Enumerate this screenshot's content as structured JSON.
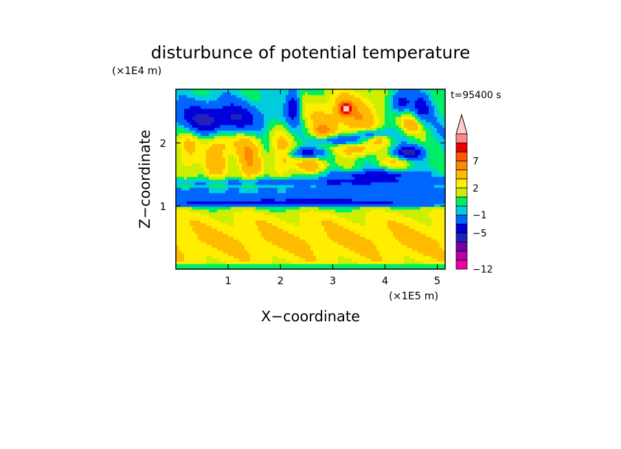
{
  "chart_data": {
    "type": "heatmap",
    "title": "disturbunce of potential temperature",
    "xlabel": "X−coordinate",
    "ylabel": "Z−coordinate",
    "x_unit": "(×1E5 m)",
    "y_unit": "(×1E4 m)",
    "time_label": "t=95400 s",
    "xlim": [
      0,
      5.15
    ],
    "ylim": [
      0,
      2.85
    ],
    "xticks": [
      1,
      2,
      3,
      4,
      5
    ],
    "yticks": [
      1,
      2
    ],
    "colorbar": {
      "levels": [
        -12,
        -11,
        -9,
        -7,
        -5,
        -3,
        -1,
        0,
        1,
        2,
        3,
        5,
        7,
        9,
        11
      ],
      "labeled_ticks": [
        7,
        2,
        -1,
        -5,
        -12
      ],
      "extend": "max",
      "colors": [
        "#ee00aa",
        "#bb00aa",
        "#7700aa",
        "#2222bb",
        "#0000dd",
        "#0066ff",
        "#00ccdd",
        "#00ee66",
        "#ccee00",
        "#ffee00",
        "#ffbb00",
        "#ff8800",
        "#ff5500",
        "#ee0000",
        "#ff8888",
        "#ffcccc"
      ]
    },
    "field_description": {
      "grid": "0-5.15 x 0-2.85 (x1E5 m, x1E4 m)",
      "features": [
        {
          "x": 0.9,
          "z": 2.4,
          "value": -5,
          "kind": "cold band"
        },
        {
          "x": 3.25,
          "z": 2.55,
          "value": 11,
          "kind": "warm core"
        },
        {
          "x": 3.0,
          "z": 0.5,
          "value": 3,
          "kind": "warm lower layer"
        },
        {
          "x": 2.5,
          "z": 1.35,
          "value": -2,
          "kind": "cool ribbon"
        }
      ]
    }
  }
}
